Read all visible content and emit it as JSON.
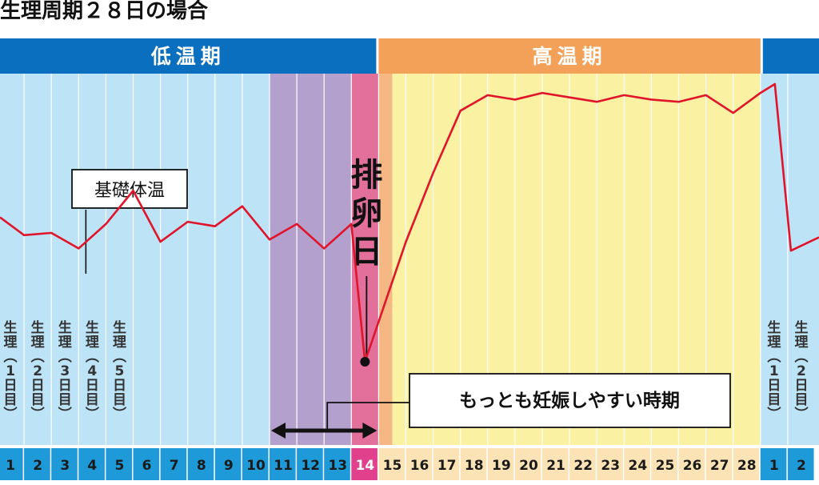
{
  "title": "生理周期２８日の場合",
  "phase_labels": {
    "low": "低温期",
    "high": "高温期"
  },
  "colors": {
    "low_band": "#0a6fbf",
    "high_band": "#f3a058",
    "low_bg": "#bde3f7",
    "fertile_bg": "#b3a0cc",
    "ovulation_bg": "#e2709a",
    "day15_bg": "#f5b884",
    "high_bg": "#fbf1a2",
    "bbt_line": "#e0142a",
    "day_row_low": "#1e9ad9",
    "day_row_high": "#fbe3b5",
    "day_row_ovulation": "#e0408c"
  },
  "chart_data": {
    "type": "line",
    "title": "生理周期２８日の場合",
    "x_labels": [
      "1",
      "2",
      "3",
      "4",
      "5",
      "6",
      "7",
      "8",
      "9",
      "10",
      "11",
      "12",
      "13",
      "14",
      "15",
      "16",
      "17",
      "18",
      "19",
      "20",
      "21",
      "22",
      "23",
      "24",
      "25",
      "26",
      "27",
      "28",
      "1",
      "2"
    ],
    "series": [
      {
        "values": [
          37,
          38,
          31,
          42,
          57,
          34,
          43,
          41,
          50,
          35,
          42,
          31,
          42,
          -20,
          34,
          65,
          93,
          100,
          98,
          101,
          99,
          97,
          100,
          98,
          97,
          100,
          92,
          101,
          105,
          30
        ]
      }
    ],
    "ylim": [
      -30,
      110
    ],
    "annotations": {
      "bbt_label": "基礎体温",
      "ovulation_label": "排卵日",
      "ovulation_day": 14,
      "fertile_label": "もっとも妊娠しやすい時期",
      "fertile_days": [
        11,
        14
      ],
      "menses_label": "生理",
      "menses_days": [
        {
          "cycle_day": 1,
          "label": "1日目"
        },
        {
          "cycle_day": 2,
          "label": "2日目"
        },
        {
          "cycle_day": 3,
          "label": "3日目"
        },
        {
          "cycle_day": 4,
          "label": "4日目"
        },
        {
          "cycle_day": 5,
          "label": "5日目"
        },
        {
          "cycle_day": 29,
          "label": "1日目"
        },
        {
          "cycle_day": 30,
          "label": "2日目"
        }
      ]
    },
    "phases": [
      {
        "name": "低温期",
        "from_day": 1,
        "to_day": 14
      },
      {
        "name": "高温期",
        "from_day": 15,
        "to_day": 28
      }
    ]
  }
}
